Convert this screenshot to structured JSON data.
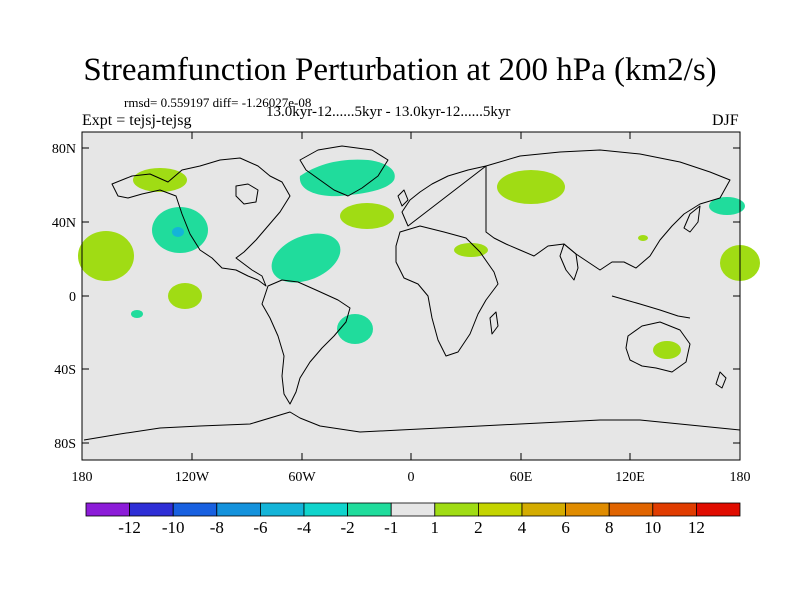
{
  "title": "Streamfunction Perturbation at 200 hPa (km2/s)",
  "stats": "rmsd= 0.559197 diff= -1.26027e-08",
  "subtitle": "13.0kyr-12......5kyr - 13.0kyr-12......5kyr",
  "expt": "Expt = tejsj-tejsg",
  "season": "DJF",
  "y_ticks": [
    "80N",
    "40N",
    "0",
    "40S",
    "80S"
  ],
  "x_ticks": [
    "180",
    "120W",
    "60W",
    "0",
    "60E",
    "120E",
    "180"
  ],
  "colorbar": {
    "colors": [
      "#8c1cd8",
      "#2e2ed6",
      "#1860e0",
      "#1492dc",
      "#14b4d8",
      "#10d4cc",
      "#20dc9c",
      "#e6e6e6",
      "#a0dc14",
      "#c4d400",
      "#d4ac00",
      "#e08c00",
      "#e06400",
      "#e03c00",
      "#e00c00"
    ],
    "labels": [
      "-12",
      "-10",
      "-8",
      "-6",
      "-4",
      "-2",
      "-1",
      "1",
      "2",
      "4",
      "6",
      "8",
      "10",
      "12"
    ]
  },
  "map_colors": {
    "background": "#e6e6e6",
    "positive": "#a0dc14",
    "negative": "#20dc9c",
    "strong_negative": "#14b4d8",
    "coast": "#000000"
  }
}
